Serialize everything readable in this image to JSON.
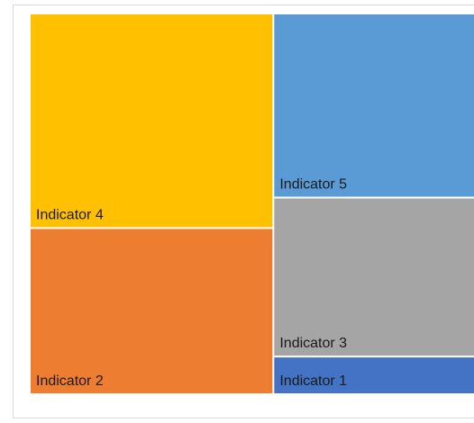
{
  "chart_data": {
    "type": "treemap",
    "categories": [
      "Indicator 4",
      "Indicator 2",
      "Indicator 5",
      "Indicator 3",
      "Indicator 1"
    ],
    "values": [
      31,
      24,
      22,
      19,
      4.5
    ],
    "colors": [
      "#FFC000",
      "#ED7D31",
      "#5B9BD5",
      "#A5A5A5",
      "#4472C4"
    ]
  }
}
